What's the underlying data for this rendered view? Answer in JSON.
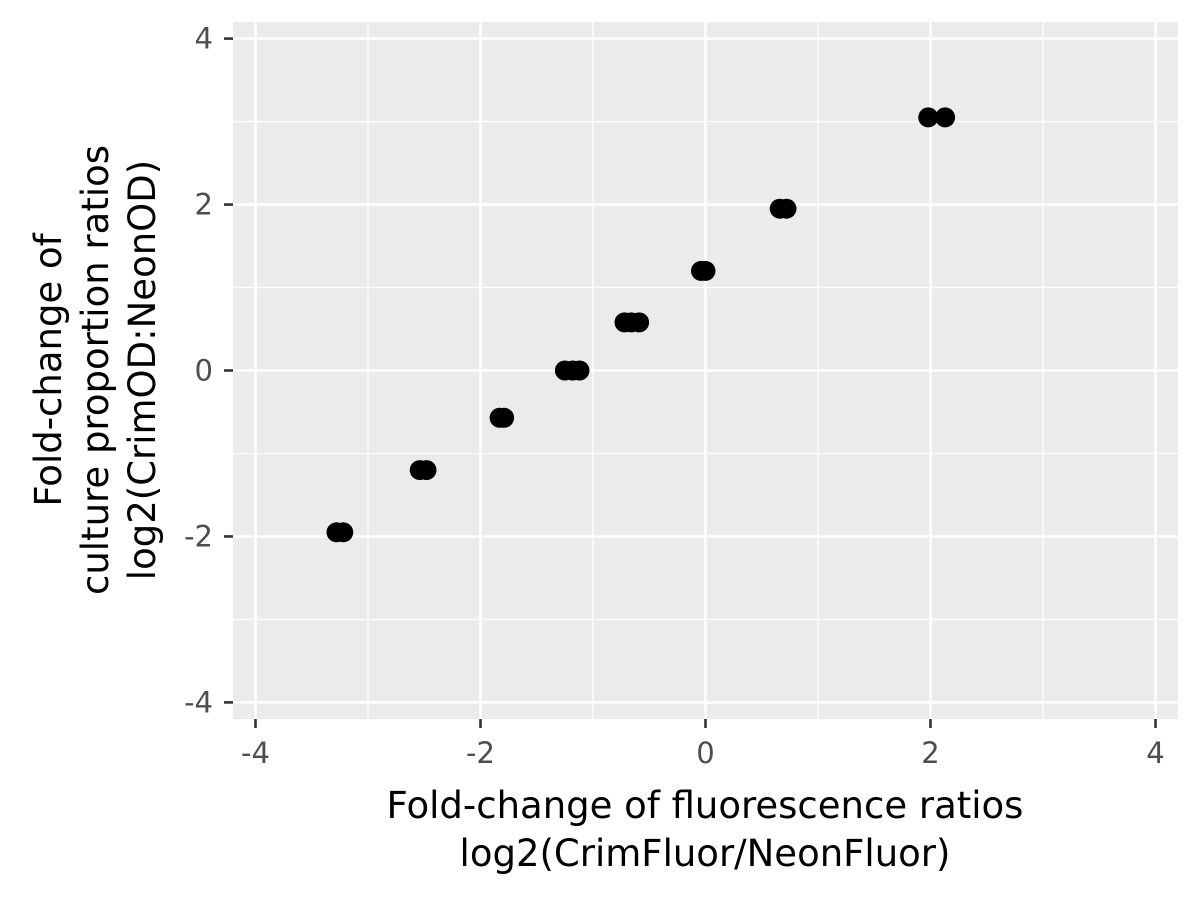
{
  "chart_data": {
    "type": "scatter",
    "title": "",
    "xlabel": [
      "Fold-change of fluorescence ratios",
      "log2(CrimFluor/NeonFluor)"
    ],
    "ylabel": [
      "Fold-change of",
      "culture proportion ratios",
      "log2(CrimOD:NeonOD)"
    ],
    "xlim": [
      -4.2,
      4.2
    ],
    "ylim": [
      -4.2,
      4.2
    ],
    "x_ticks": [
      -4,
      -2,
      0,
      2,
      4
    ],
    "y_ticks": [
      -4,
      -2,
      0,
      2,
      4
    ],
    "x_tick_labels": [
      "-4",
      "-2",
      "0",
      "2",
      "4"
    ],
    "y_tick_labels": [
      "-4",
      "-2",
      "0",
      "2",
      "4"
    ],
    "grid": true,
    "legend": "none",
    "colors": {
      "panel": "#EBEBEB",
      "grid": "#FFFFFF",
      "point": "#000000"
    },
    "series": [
      {
        "points": [
          {
            "x": -3.28,
            "y": -1.95
          },
          {
            "x": -3.22,
            "y": -1.95
          },
          {
            "x": -2.54,
            "y": -1.2
          },
          {
            "x": -2.48,
            "y": -1.2
          },
          {
            "x": -1.83,
            "y": -0.57
          },
          {
            "x": -1.79,
            "y": -0.57
          },
          {
            "x": -1.25,
            "y": 0.0
          },
          {
            "x": -1.18,
            "y": 0.0
          },
          {
            "x": -1.12,
            "y": 0.0
          },
          {
            "x": -0.72,
            "y": 0.58
          },
          {
            "x": -0.66,
            "y": 0.58
          },
          {
            "x": -0.59,
            "y": 0.58
          },
          {
            "x": -0.04,
            "y": 1.2
          },
          {
            "x": 0.0,
            "y": 1.2
          },
          {
            "x": 0.66,
            "y": 1.95
          },
          {
            "x": 0.72,
            "y": 1.95
          },
          {
            "x": 1.98,
            "y": 3.05
          },
          {
            "x": 2.13,
            "y": 3.05
          }
        ]
      }
    ]
  }
}
